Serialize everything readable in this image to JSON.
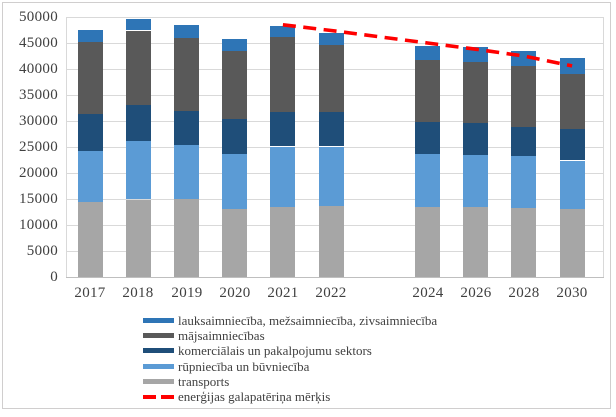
{
  "chart_data": {
    "type": "bar",
    "stacked": true,
    "title": "",
    "categories": [
      "2017",
      "2018",
      "2019",
      "2020",
      "2021",
      "2022",
      "",
      "2024",
      "2026",
      "2028",
      "2030"
    ],
    "series": [
      {
        "name": "transports",
        "color": "#A6A6A6",
        "values": [
          14400,
          14900,
          15000,
          13000,
          13500,
          13700,
          null,
          13500,
          13500,
          13200,
          13000
        ]
      },
      {
        "name": "rūpniecība un būvniecība",
        "color": "#5B9BD5",
        "values": [
          9900,
          11200,
          10300,
          10700,
          11600,
          11400,
          null,
          10200,
          10000,
          10000,
          9400
        ]
      },
      {
        "name": "komerciālais un pakalpojumu sektors",
        "color": "#1F4E79",
        "values": [
          7100,
          6900,
          6700,
          6600,
          6600,
          6600,
          null,
          6200,
          6100,
          5600,
          6100
        ]
      },
      {
        "name": "mājsaimniecības",
        "color": "#595959",
        "values": [
          13800,
          14400,
          14000,
          13100,
          14500,
          13000,
          null,
          11800,
          11700,
          11800,
          10600
        ]
      },
      {
        "name": "lauksaimniecība, mežsaimniecība, zivsaimniecība",
        "color": "#2E75B6",
        "values": [
          2300,
          2200,
          2400,
          2400,
          2000,
          2300,
          null,
          2800,
          2900,
          2900,
          3000
        ]
      }
    ],
    "totals": [
      47500,
      49600,
      48400,
      45800,
      48200,
      47000,
      null,
      44500,
      44200,
      43500,
      42100
    ],
    "line": {
      "name": "enerģijas galapatēriņa mērķis",
      "color": "#FF0000",
      "dashed": true,
      "values": [
        null,
        null,
        null,
        null,
        48500,
        47400,
        46200,
        45000,
        43800,
        42500,
        40600
      ]
    },
    "ylim": [
      0,
      50000
    ],
    "y_ticks": [
      0,
      5000,
      10000,
      15000,
      20000,
      25000,
      30000,
      35000,
      40000,
      45000,
      50000
    ],
    "y_tick_labels": [
      "0",
      "5000",
      "10000",
      "15000",
      "20000",
      "25000",
      "30000",
      "35000",
      "40000",
      "45000",
      "50000"
    ],
    "xlabel": "",
    "ylabel": "",
    "grid": "horizontal",
    "legend_position": "bottom"
  },
  "legend": {
    "entries": [
      {
        "label": "lauksaimniecība, mežsaimniecība, zivsaimniecība",
        "swatch": "rect",
        "color": "#2E75B6"
      },
      {
        "label": "mājsaimniecības",
        "swatch": "rect",
        "color": "#595959"
      },
      {
        "label": "komerciālais un pakalpojumu sektors",
        "swatch": "rect",
        "color": "#1F4E79"
      },
      {
        "label": "rūpniecība un būvniecība",
        "swatch": "rect",
        "color": "#5B9BD5"
      },
      {
        "label": "transports",
        "swatch": "rect",
        "color": "#A6A6A6"
      },
      {
        "label": "enerģijas galapatēriņa mērķis",
        "swatch": "dashed-line",
        "color": "#FF0000"
      }
    ]
  },
  "colors": {
    "background": "#FFFFFF",
    "gridline": "#D9D9D9",
    "axis_line": "#BFBFBF",
    "text": "#404040",
    "frame_border": "#D0CECE",
    "target_red": "#FF0000"
  }
}
